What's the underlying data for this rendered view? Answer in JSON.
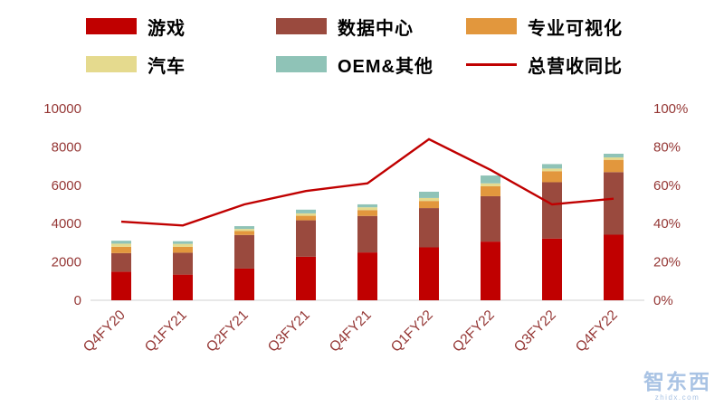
{
  "chart_data": {
    "type": "bar",
    "stacked": true,
    "title": "",
    "legend_position": "top",
    "grid": false,
    "categories": [
      "Q4FY20",
      "Q1FY21",
      "Q2FY21",
      "Q3FY21",
      "Q4FY21",
      "Q1FY22",
      "Q2FY22",
      "Q3FY22",
      "Q4FY22"
    ],
    "series": [
      {
        "name": "游戏",
        "color": "#c00000",
        "values": [
          1491,
          1339,
          1654,
          2271,
          2495,
          2760,
          3061,
          3221,
          3420
        ]
      },
      {
        "name": "数据中心",
        "color": "#9a4a3e",
        "values": [
          968,
          1141,
          1752,
          1900,
          1903,
          2048,
          2366,
          2936,
          3263
        ]
      },
      {
        "name": "专业可视化",
        "color": "#e2973d",
        "values": [
          331,
          307,
          203,
          236,
          307,
          372,
          519,
          577,
          643
        ]
      },
      {
        "name": "汽车",
        "color": "#e5da8e",
        "values": [
          163,
          155,
          111,
          125,
          145,
          154,
          152,
          135,
          125
        ]
      },
      {
        "name": "OEM&其他",
        "color": "#8fc3b7",
        "values": [
          152,
          138,
          146,
          194,
          153,
          327,
          409,
          234,
          192
        ]
      }
    ],
    "line_series": {
      "name": "总营收同比",
      "color": "#c00000",
      "values_pct": [
        41,
        39,
        50,
        57,
        61,
        84,
        68,
        50,
        53
      ]
    },
    "left_axis": {
      "min": 0,
      "max": 10000,
      "step": 2000,
      "ticks": [
        "0",
        "2000",
        "4000",
        "6000",
        "8000",
        "10000"
      ]
    },
    "right_axis": {
      "min": 0,
      "max": 100,
      "step": 20,
      "ticks": [
        "0%",
        "20%",
        "40%",
        "60%",
        "80%",
        "100%"
      ]
    }
  },
  "watermark": {
    "text": "智东西",
    "subtext": "zhidx.com"
  },
  "colors": {
    "axis_label": "#953735",
    "background": "#ffffff",
    "baseline": "#d0d0d0"
  }
}
